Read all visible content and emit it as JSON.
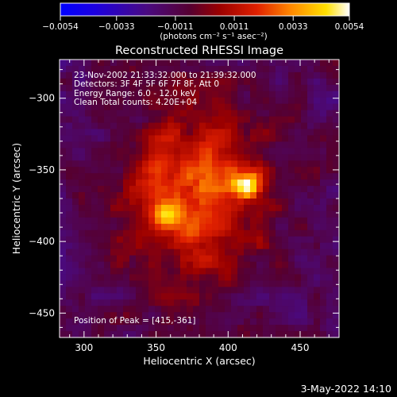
{
  "chart_data": {
    "type": "heatmap",
    "title": "Reconstructed RHESSI Image",
    "xlabel": "Heliocentric X (arcsec)",
    "ylabel": "Heliocentric Y (arcsec)",
    "xlim": [
      283,
      477
    ],
    "ylim": [
      -467,
      -273
    ],
    "xticks": [
      "300",
      "350",
      "400",
      "450"
    ],
    "yticks": [
      "-300",
      "-350",
      "-400",
      "-450"
    ],
    "colorbar": {
      "min": -0.0054,
      "max": 0.0054,
      "ticks": [
        "-0.0054",
        "-0.0033",
        "-0.0011",
        "0.0011",
        "0.0033",
        "0.0054"
      ],
      "units": "(photons cm⁻² s⁻¹ asec⁻²)"
    },
    "annotations": [
      "23-Nov-2002 21:33:32.000 to 21:39:32.000",
      "Detectors: 3F 4F 5F 6F 7F 8F, Att 0",
      "Energy Range: 6.0 - 12.0 keV",
      "Clean     Total counts: 4.20E+04"
    ],
    "peak_label": "Position of Peak = [415,-361]",
    "peak": [
      415,
      -361
    ],
    "sources": [
      {
        "x": 415,
        "y": -361,
        "value": 0.0054
      },
      {
        "x": 357,
        "y": -383,
        "value": 0.004
      },
      {
        "x": 350,
        "y": -340,
        "value": 0.0018
      },
      {
        "x": 405,
        "y": -355,
        "value": 0.002
      },
      {
        "x": 375,
        "y": -395,
        "value": 0.0015
      }
    ]
  },
  "footer": {
    "date": "3-May-2022 14:10"
  }
}
